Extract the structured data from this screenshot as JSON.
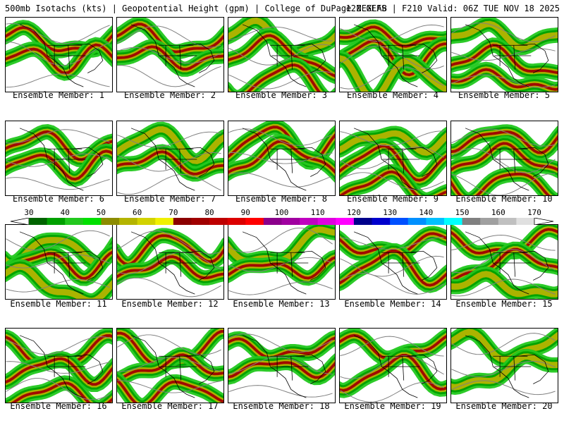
{
  "header": {
    "left": "500mb Isotachs (kts) | Geopotential Height (gpm) | College of DuPage NEXLAB",
    "right": "12Z GEFS | F210 Valid: 06Z TUE NOV 18 2025"
  },
  "colorbar": {
    "labels": [
      "30",
      "40",
      "50",
      "60",
      "70",
      "80",
      "90",
      "100",
      "110",
      "120",
      "130",
      "140",
      "150",
      "160",
      "170"
    ],
    "colors": [
      "#006400",
      "#00a000",
      "#22c81e",
      "#00e000",
      "#8c8c00",
      "#b4b400",
      "#d2d200",
      "#f0f000",
      "#8b0000",
      "#a00000",
      "#be0000",
      "#dc0000",
      "#ff0000",
      "#8b008b",
      "#a000a0",
      "#c000c0",
      "#e000e0",
      "#ff00ff",
      "#00008b",
      "#0000cd",
      "#0050ff",
      "#0090ff",
      "#00c0ff",
      "#00ffff",
      "#808080",
      "#a0a0a0",
      "#c0c0c0",
      "#e0e0e0"
    ]
  },
  "members": [
    {
      "label": "Ensemble Member: 1"
    },
    {
      "label": "Ensemble Member: 2"
    },
    {
      "label": "Ensemble Member: 3"
    },
    {
      "label": "Ensemble Member: 4"
    },
    {
      "label": "Ensemble Member: 5"
    },
    {
      "label": "Ensemble Member: 6"
    },
    {
      "label": "Ensemble Member: 7"
    },
    {
      "label": "Ensemble Member: 8"
    },
    {
      "label": "Ensemble Member: 9"
    },
    {
      "label": "Ensemble Member: 10"
    },
    {
      "label": "Ensemble Member: 11"
    },
    {
      "label": "Ensemble Member: 12"
    },
    {
      "label": "Ensemble Member: 13"
    },
    {
      "label": "Ensemble Member: 14"
    },
    {
      "label": "Ensemble Member: 15"
    },
    {
      "label": "Ensemble Member: 16"
    },
    {
      "label": "Ensemble Member: 17"
    },
    {
      "label": "Ensemble Member: 18"
    },
    {
      "label": "Ensemble Member: 19"
    },
    {
      "label": "Ensemble Member: 20"
    }
  ]
}
